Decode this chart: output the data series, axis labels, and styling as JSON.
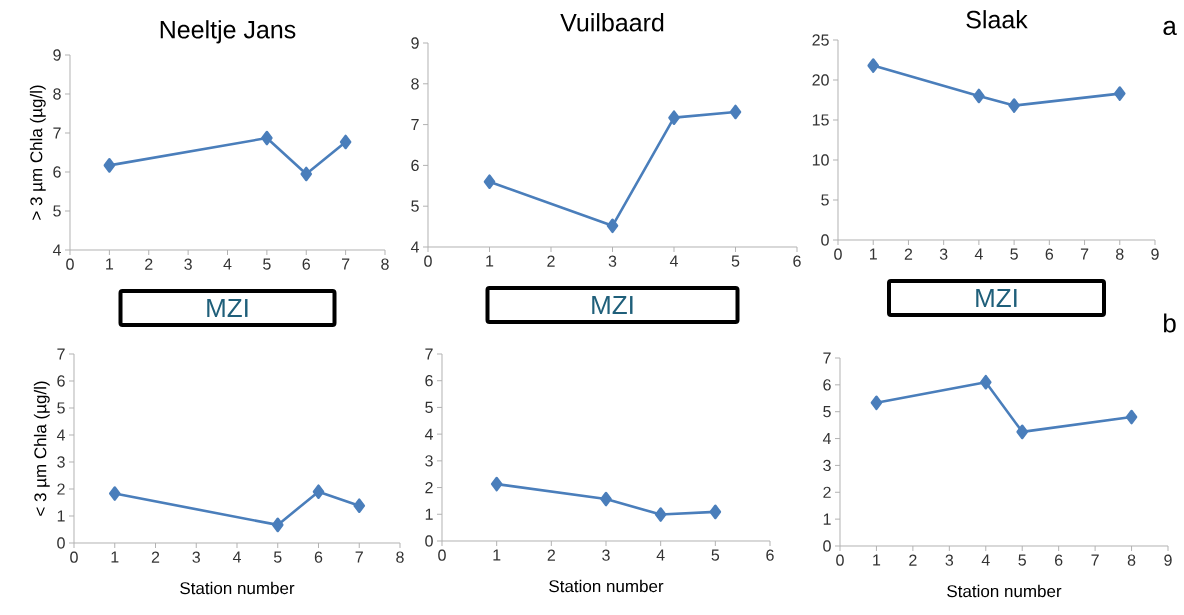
{
  "chart_data": [
    {
      "type": "line",
      "title": "Neeltje Jans",
      "ylabel": "> 3 µm Chla (µg/l)",
      "x": [
        1,
        5,
        6,
        7
      ],
      "values": [
        6.17,
        6.87,
        5.95,
        6.77
      ],
      "color": "#4a7ebb",
      "marker": "diamond",
      "xlim": [
        0,
        8
      ],
      "xticks": [
        0,
        1,
        2,
        3,
        4,
        5,
        6,
        7,
        8
      ],
      "ylim": [
        4,
        9
      ],
      "yticks": [
        4,
        5,
        6,
        7,
        8,
        9
      ],
      "annotations": [
        "MZI"
      ]
    },
    {
      "type": "line",
      "title": "Vuilbaard",
      "x": [
        1,
        3,
        4,
        5
      ],
      "values": [
        5.6,
        4.52,
        7.17,
        7.31
      ],
      "color": "#4a7ebb",
      "marker": "diamond",
      "xlim": [
        0,
        6
      ],
      "xticks": [
        0,
        1,
        2,
        3,
        4,
        5,
        6
      ],
      "ylim": [
        4,
        9
      ],
      "yticks": [
        4,
        5,
        6,
        7,
        8,
        9
      ],
      "annotations": [
        "MZI"
      ]
    },
    {
      "type": "line",
      "title": "Slaak",
      "x": [
        1,
        4,
        5,
        8
      ],
      "values": [
        21.8,
        18.0,
        16.8,
        18.3
      ],
      "color": "#4a7ebb",
      "marker": "diamond",
      "xlim": [
        0,
        9
      ],
      "xticks": [
        0,
        1,
        2,
        3,
        4,
        5,
        6,
        7,
        8,
        9
      ],
      "ylim": [
        0,
        25
      ],
      "yticks": [
        0,
        5,
        10,
        15,
        20,
        25
      ],
      "annotations": [
        "MZI",
        "a"
      ]
    },
    {
      "type": "line",
      "xlabel": "Station number",
      "ylabel": "< 3 µm Chla (µg/l)",
      "x": [
        1,
        5,
        6,
        7
      ],
      "values": [
        1.83,
        0.67,
        1.9,
        1.38
      ],
      "color": "#4a7ebb",
      "marker": "diamond",
      "xlim": [
        0,
        8
      ],
      "xticks": [
        0,
        1,
        2,
        3,
        4,
        5,
        6,
        7,
        8
      ],
      "ylim": [
        0,
        7
      ],
      "yticks": [
        0,
        1,
        2,
        3,
        4,
        5,
        6,
        7
      ]
    },
    {
      "type": "line",
      "xlabel": "Station number",
      "x": [
        1,
        3,
        4,
        5
      ],
      "values": [
        2.13,
        1.57,
        0.99,
        1.09
      ],
      "color": "#4a7ebb",
      "marker": "diamond",
      "xlim": [
        0,
        6
      ],
      "xticks": [
        0,
        1,
        2,
        3,
        4,
        5,
        6
      ],
      "ylim": [
        0,
        7
      ],
      "yticks": [
        0,
        1,
        2,
        3,
        4,
        5,
        6,
        7
      ]
    },
    {
      "type": "line",
      "xlabel": "Station number",
      "x": [
        1,
        4,
        5,
        8
      ],
      "values": [
        5.33,
        6.1,
        4.25,
        4.8
      ],
      "color": "#4a7ebb",
      "marker": "diamond",
      "xlim": [
        0,
        9
      ],
      "xticks": [
        0,
        1,
        2,
        3,
        4,
        5,
        6,
        7,
        8,
        9
      ],
      "ylim": [
        0,
        7
      ],
      "yticks": [
        0,
        1,
        2,
        3,
        4,
        5,
        6,
        7
      ],
      "annotations": [
        "b"
      ]
    }
  ]
}
